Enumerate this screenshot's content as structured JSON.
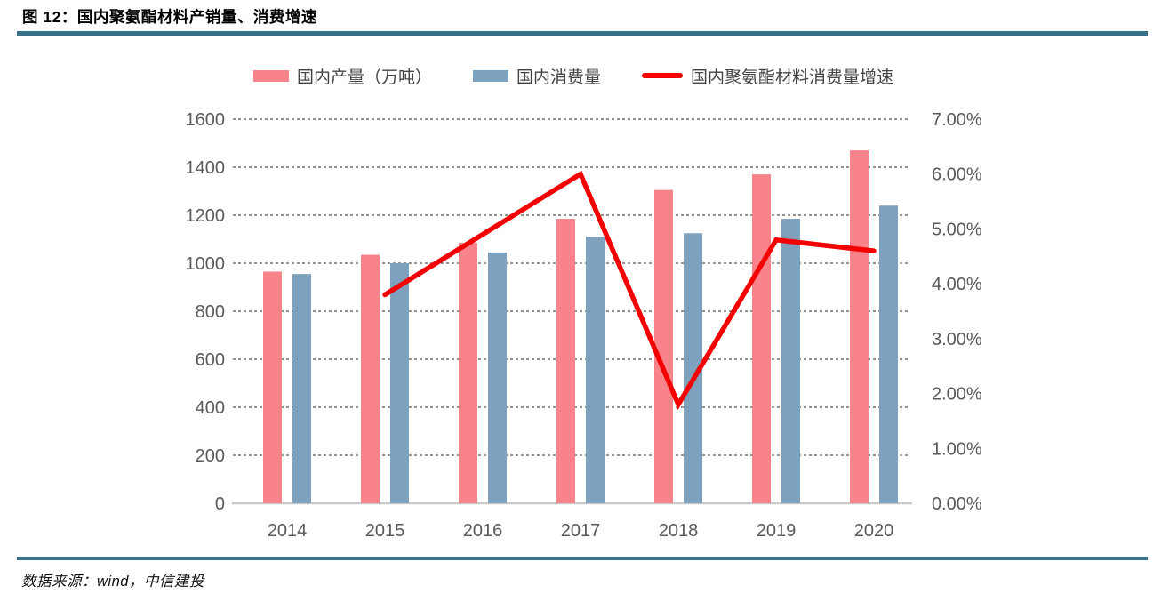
{
  "header": {
    "title": "图 12：国内聚氨酯材料产销量、消费增速"
  },
  "footer": {
    "source": "数据来源：wind，中信建投"
  },
  "colors": {
    "accent_rule": "#38708A",
    "production_bar": "#F9838A",
    "consumption_bar": "#7EA2BD",
    "growth_line": "#F40000",
    "axis_text": "#595959",
    "gridline": "#262626",
    "baseline": "#C9C9C9"
  },
  "chart_data": {
    "type": "combo-bar-line",
    "title": "国内聚氨酯材料产销量、消费增速",
    "categories": [
      "2014",
      "2015",
      "2016",
      "2017",
      "2018",
      "2019",
      "2020"
    ],
    "series": [
      {
        "key": "production",
        "name": "国内产量（万吨）",
        "type": "bar",
        "axis": "left",
        "color": "#F9838A",
        "values": [
          965,
          1035,
          1085,
          1185,
          1305,
          1370,
          1470
        ]
      },
      {
        "key": "consumption",
        "name": "国内消费量",
        "type": "bar",
        "axis": "left",
        "color": "#7EA2BD",
        "values": [
          955,
          1000,
          1045,
          1110,
          1125,
          1185,
          1240
        ]
      },
      {
        "key": "growth",
        "name": "国内聚氨酯材料消费量增速",
        "type": "line",
        "axis": "right",
        "unit": "%",
        "color": "#F40000",
        "values": [
          null,
          3.8,
          4.9,
          6.0,
          1.8,
          4.8,
          4.6
        ]
      }
    ],
    "left_axis": {
      "min": 0,
      "max": 1600,
      "step": 200,
      "tick_labels": [
        "0",
        "200",
        "400",
        "600",
        "800",
        "1000",
        "1200",
        "1400",
        "1600"
      ]
    },
    "right_axis": {
      "min": 0,
      "max": 7,
      "step": 1,
      "tick_labels": [
        "0.00%",
        "1.00%",
        "2.00%",
        "3.00%",
        "4.00%",
        "5.00%",
        "6.00%",
        "7.00%"
      ]
    },
    "grid": "horizontal-dashed",
    "legend_position": "top-center"
  }
}
